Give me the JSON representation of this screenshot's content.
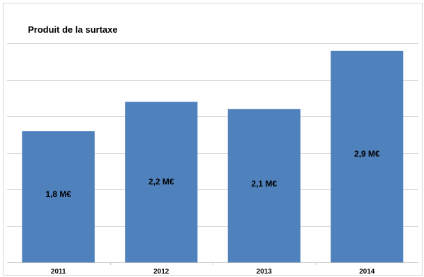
{
  "chart_data": {
    "type": "bar",
    "title": "Produit de la surtaxe",
    "xlabel": "",
    "ylabel": "",
    "categories": [
      "2011",
      "2012",
      "2013",
      "2014"
    ],
    "values": [
      1.8,
      2.2,
      2.1,
      2.9
    ],
    "data_labels": [
      "1,8 M€",
      "2,2 M€",
      "2,1 M€",
      "2,9 M€"
    ],
    "ylim": [
      0,
      3.5
    ],
    "grid": true,
    "legend": "none",
    "colors": {
      "bar": "#4f81bd",
      "grid": "#d9d9d9",
      "axis": "#bfbfbf"
    }
  }
}
